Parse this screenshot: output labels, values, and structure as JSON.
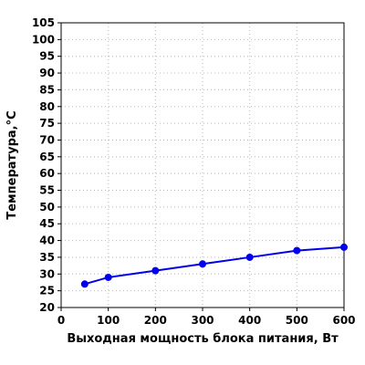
{
  "chart_data": {
    "type": "line",
    "xlabel": "Выходная мощность блока питания, Вт",
    "ylabel": "Температура,°C",
    "xlim": [
      0,
      600
    ],
    "ylim": [
      20,
      105
    ],
    "xticks": [
      0,
      100,
      200,
      300,
      400,
      500,
      600
    ],
    "yticks": [
      20,
      25,
      30,
      35,
      40,
      45,
      50,
      55,
      60,
      65,
      70,
      75,
      80,
      85,
      90,
      95,
      100,
      105
    ],
    "grid": true,
    "series": [
      {
        "color": "#0000ee",
        "x": [
          50,
          100,
          200,
          300,
          400,
          500,
          600
        ],
        "y": [
          27,
          29,
          31,
          33,
          35,
          37,
          38
        ]
      }
    ]
  }
}
